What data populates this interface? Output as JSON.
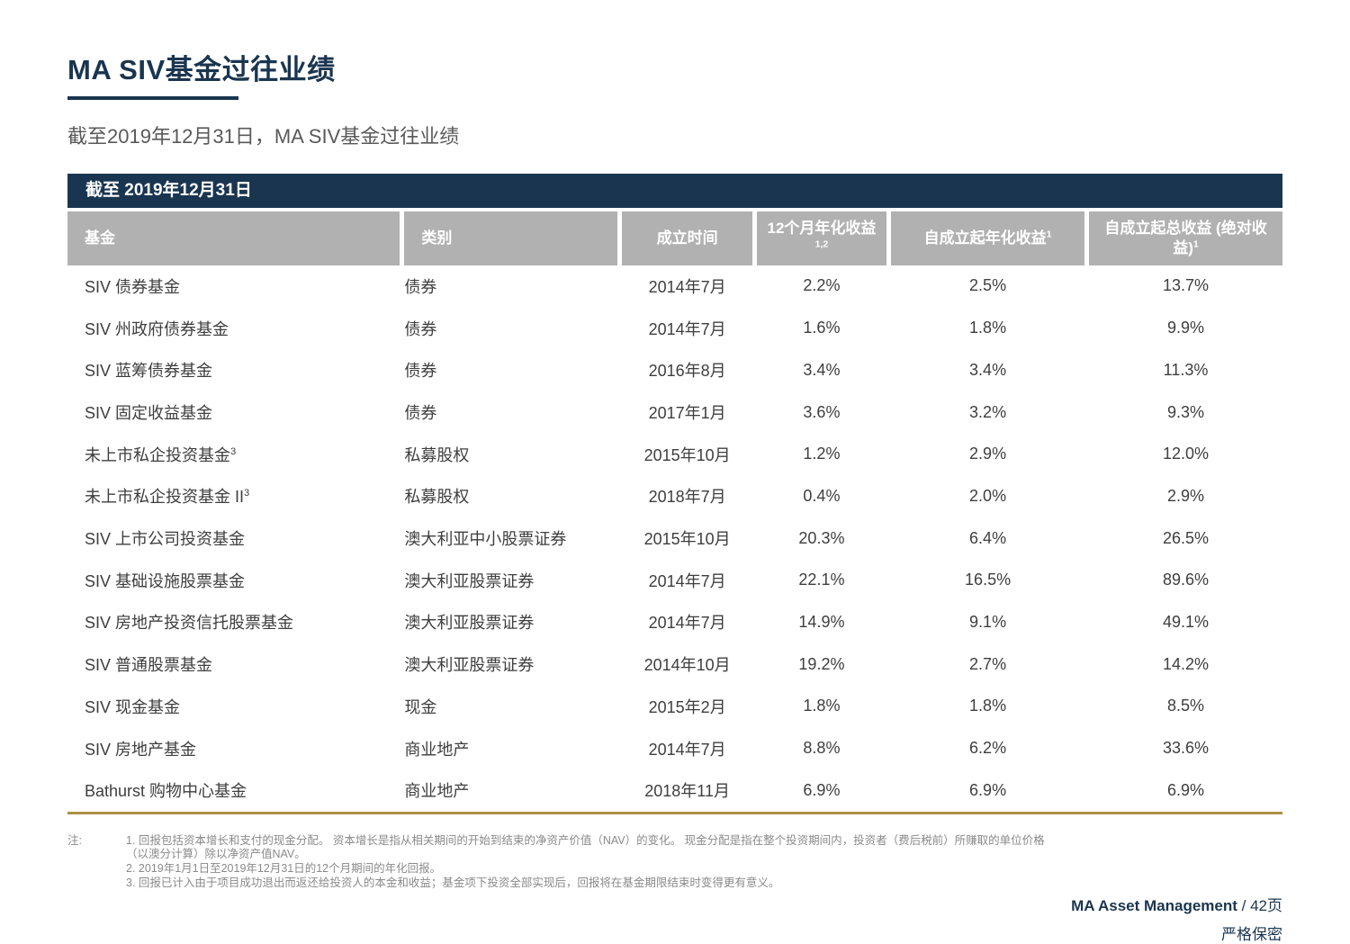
{
  "page": {
    "title": "MA SIV基金过往业绩",
    "subtitle": "截至2019年12月31日，MA SIV基金过往业绩"
  },
  "table": {
    "banner": "截至 2019年12月31日",
    "columns": [
      {
        "label": "基金",
        "sup": ""
      },
      {
        "label": "类别",
        "sup": ""
      },
      {
        "label": "成立时间",
        "sup": ""
      },
      {
        "label": "12个月年化收益",
        "sup": "1,2"
      },
      {
        "label": "自成立起年化收益",
        "sup": "1"
      },
      {
        "label": "自成立起总收益 (绝对收益)",
        "sup": "1"
      }
    ],
    "rows": [
      {
        "fund": "SIV 债券基金",
        "fund_sup": "",
        "category": "债券",
        "inception": "2014年7月",
        "return_12m": "2.2%",
        "return_ann_since": "2.5%",
        "return_total_since": "13.7%"
      },
      {
        "fund": "SIV 州政府债券基金",
        "fund_sup": "",
        "category": "债券",
        "inception": "2014年7月",
        "return_12m": "1.6%",
        "return_ann_since": "1.8%",
        "return_total_since": "9.9%"
      },
      {
        "fund": "SIV 蓝筹债券基金",
        "fund_sup": "",
        "category": "债券",
        "inception": "2016年8月",
        "return_12m": "3.4%",
        "return_ann_since": "3.4%",
        "return_total_since": "11.3%"
      },
      {
        "fund": "SIV 固定收益基金",
        "fund_sup": "",
        "category": "债券",
        "inception": "2017年1月",
        "return_12m": "3.6%",
        "return_ann_since": "3.2%",
        "return_total_since": "9.3%"
      },
      {
        "fund": "未上市私企投资基金",
        "fund_sup": "3",
        "category": "私募股权",
        "inception": "2015年10月",
        "return_12m": "1.2%",
        "return_ann_since": "2.9%",
        "return_total_since": "12.0%"
      },
      {
        "fund": "未上市私企投资基金 II",
        "fund_sup": "3",
        "category": "私募股权",
        "inception": "2018年7月",
        "return_12m": "0.4%",
        "return_ann_since": "2.0%",
        "return_total_since": "2.9%"
      },
      {
        "fund": "SIV 上市公司投资基金",
        "fund_sup": "",
        "category": "澳大利亚中小股票证券",
        "inception": "2015年10月",
        "return_12m": "20.3%",
        "return_ann_since": "6.4%",
        "return_total_since": "26.5%"
      },
      {
        "fund": "SIV 基础设施股票基金",
        "fund_sup": "",
        "category": "澳大利亚股票证券",
        "inception": "2014年7月",
        "return_12m": "22.1%",
        "return_ann_since": "16.5%",
        "return_total_since": "89.6%"
      },
      {
        "fund": "SIV 房地产投资信托股票基金",
        "fund_sup": "",
        "category": "澳大利亚股票证券",
        "inception": "2014年7月",
        "return_12m": "14.9%",
        "return_ann_since": "9.1%",
        "return_total_since": "49.1%"
      },
      {
        "fund": "SIV 普通股票基金",
        "fund_sup": "",
        "category": "澳大利亚股票证券",
        "inception": "2014年10月",
        "return_12m": "19.2%",
        "return_ann_since": "2.7%",
        "return_total_since": "14.2%"
      },
      {
        "fund": "SIV 现金基金",
        "fund_sup": "",
        "category": "现金",
        "inception": "2015年2月",
        "return_12m": "1.8%",
        "return_ann_since": "1.8%",
        "return_total_since": "8.5%"
      },
      {
        "fund": "SIV 房地产基金",
        "fund_sup": "",
        "category": "商业地产",
        "inception": "2014年7月",
        "return_12m": "8.8%",
        "return_ann_since": "6.2%",
        "return_total_since": "33.6%"
      },
      {
        "fund": "Bathurst 购物中心基金",
        "fund_sup": "",
        "category": "商业地产",
        "inception": "2018年11月",
        "return_12m": "6.9%",
        "return_ann_since": "6.9%",
        "return_total_since": "6.9%"
      }
    ]
  },
  "notes": {
    "label": "注:",
    "items": [
      "1. 回报包括资本增长和支付的现金分配。 资本增长是指从相关期间的开始到结束的净资产价值（NAV）的变化。 现金分配是指在整个投资期间内，投资者（费后税前）所赚取的单位价格 （以澳分计算）除以净资产值NAV。",
      "2. 2019年1月1日至2019年12月31日的12个月期间的年化回报。",
      "3. 回报已计入由于项目成功退出而返还给投资人的本金和收益；基金项下投资全部实现后，回报将在基金期限结束时变得更有意义。"
    ]
  },
  "footer": {
    "brand": "MA Asset Management",
    "page_suffix": " / 42页",
    "confidential": "严格保密"
  },
  "colors": {
    "navy": "#1a3550",
    "header_gray": "#b1b1b1",
    "gold": "#ab9245",
    "body_text": "#3e3e3e",
    "note_gray": "#8a8a8a"
  }
}
